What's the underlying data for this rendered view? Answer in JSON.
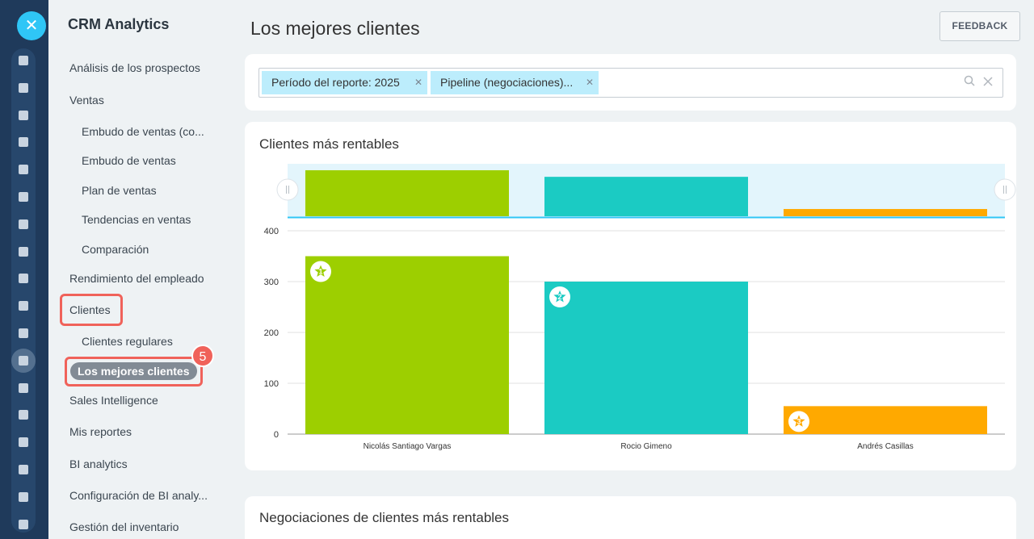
{
  "rail": {
    "close_icon": "close-icon",
    "icons": [
      "stream-icon",
      "feed-icon",
      "chat-icon",
      "calendar-icon",
      "drive-icon",
      "docs-icon",
      "mail-icon",
      "contacts-icon",
      "crm-icon",
      "tasks-icon",
      "contact-card-icon",
      "funnel-icon",
      "robot-icon",
      "cart-icon",
      "sign-icon",
      "docs-edit-icon",
      "analytics-icon",
      "list-icon"
    ]
  },
  "sidenav": {
    "title": "CRM Analytics",
    "items": [
      {
        "label": "Análisis de los prospectos"
      },
      {
        "label": "Ventas"
      },
      {
        "label": "Embudo de ventas (co..."
      },
      {
        "label": "Embudo de ventas"
      },
      {
        "label": "Plan de ventas"
      },
      {
        "label": "Tendencias en ventas"
      },
      {
        "label": "Comparación"
      },
      {
        "label": "Rendimiento del empleado"
      },
      {
        "label": "Clientes"
      },
      {
        "label": "Clientes regulares"
      },
      {
        "label": "Los mejores clientes"
      },
      {
        "label": "Sales Intelligence"
      },
      {
        "label": "Mis reportes"
      },
      {
        "label": "BI analytics"
      },
      {
        "label": "Configuración de BI analy..."
      },
      {
        "label": "Gestión del inventario"
      }
    ],
    "step_badge": "5"
  },
  "header": {
    "title": "Los mejores clientes",
    "feedback": "FEEDBACK"
  },
  "filters": {
    "chips": [
      "Período del reporte: 2025",
      "Pipeline (negociaciones)..."
    ]
  },
  "chart_card": {
    "title": "Clientes más rentables"
  },
  "deals_card": {
    "title": "Negociaciones de clientes más rentables"
  },
  "colors": {
    "bar1": "#9dcf00",
    "bar2": "#1bcbc3",
    "bar3": "#ffa900",
    "rail": "#1f3a5b",
    "highlight": "#f0625a"
  },
  "chart_data": {
    "type": "bar",
    "categories": [
      "Nicolás Santiago Vargas",
      "Rocio Gimeno",
      "Andrés Casillas"
    ],
    "values": [
      350,
      300,
      55
    ],
    "ranks": [
      "1",
      "2",
      "3"
    ],
    "ylim": [
      0,
      400
    ],
    "yticks": [
      "0",
      "100",
      "200",
      "300",
      "400"
    ],
    "grid": true,
    "legend": "none"
  }
}
